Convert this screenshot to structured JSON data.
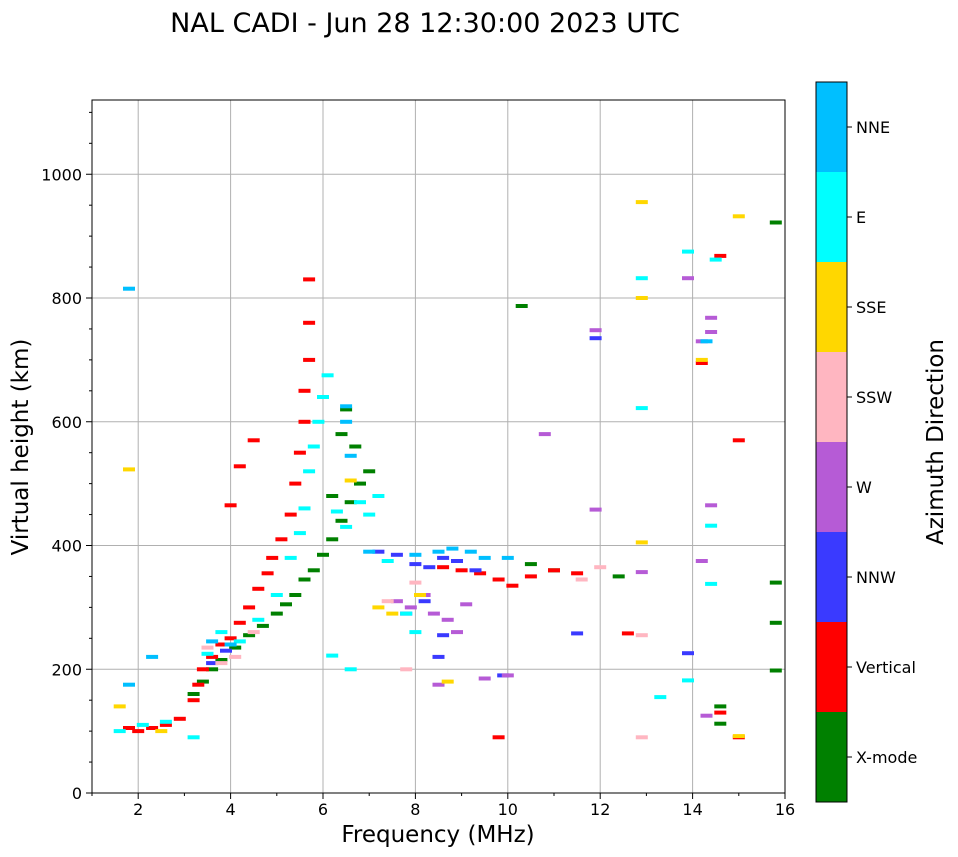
{
  "chart_data": {
    "type": "scatter",
    "title": "NAL CADI - Jun 28 12:30:00 2023 UTC",
    "xlabel": "Frequency (MHz)",
    "ylabel": "Virtual height (km)",
    "xlim": [
      1,
      16
    ],
    "ylim": [
      0,
      1120
    ],
    "xticks": [
      2,
      4,
      6,
      8,
      10,
      12,
      14,
      16
    ],
    "yticks": [
      0,
      200,
      400,
      600,
      800,
      1000
    ],
    "grid": true,
    "colorbar": {
      "label": "Azimuth Direction",
      "categories": [
        {
          "name": "X-mode",
          "color": "#008000"
        },
        {
          "name": "Vertical",
          "color": "#ff0000"
        },
        {
          "name": "NNW",
          "color": "#3a3aff"
        },
        {
          "name": "W",
          "color": "#b65bd6"
        },
        {
          "name": "SSW",
          "color": "#ffb6c1"
        },
        {
          "name": "SSE",
          "color": "#ffd700"
        },
        {
          "name": "E",
          "color": "#00ffff"
        },
        {
          "name": "NNE",
          "color": "#00bfff"
        }
      ]
    },
    "series": [
      {
        "name": "X-mode",
        "points": [
          [
            3.2,
            160
          ],
          [
            3.4,
            180
          ],
          [
            3.6,
            200
          ],
          [
            3.8,
            215
          ],
          [
            4.1,
            235
          ],
          [
            4.4,
            255
          ],
          [
            4.7,
            270
          ],
          [
            5.0,
            290
          ],
          [
            5.2,
            305
          ],
          [
            5.4,
            320
          ],
          [
            5.6,
            345
          ],
          [
            5.8,
            360
          ],
          [
            6.0,
            385
          ],
          [
            6.2,
            410
          ],
          [
            6.4,
            440
          ],
          [
            6.6,
            470
          ],
          [
            6.8,
            500
          ],
          [
            7.0,
            520
          ],
          [
            6.5,
            620
          ],
          [
            6.4,
            580
          ],
          [
            6.7,
            560
          ],
          [
            6.2,
            480
          ],
          [
            10.3,
            787
          ],
          [
            10.5,
            370
          ],
          [
            11.0,
            360
          ],
          [
            12.4,
            350
          ],
          [
            14.6,
            140
          ],
          [
            14.6,
            112
          ],
          [
            15.8,
            922
          ],
          [
            15.8,
            340
          ],
          [
            15.8,
            275
          ],
          [
            15.8,
            198
          ]
        ]
      },
      {
        "name": "Vertical",
        "points": [
          [
            1.8,
            105
          ],
          [
            2.0,
            100
          ],
          [
            2.3,
            105
          ],
          [
            2.6,
            110
          ],
          [
            2.9,
            120
          ],
          [
            3.2,
            150
          ],
          [
            3.3,
            175
          ],
          [
            3.4,
            200
          ],
          [
            3.6,
            220
          ],
          [
            3.8,
            240
          ],
          [
            4.0,
            250
          ],
          [
            4.2,
            275
          ],
          [
            4.4,
            300
          ],
          [
            4.6,
            330
          ],
          [
            4.8,
            355
          ],
          [
            4.9,
            380
          ],
          [
            5.1,
            410
          ],
          [
            5.3,
            450
          ],
          [
            5.4,
            500
          ],
          [
            5.5,
            550
          ],
          [
            5.6,
            600
          ],
          [
            5.6,
            650
          ],
          [
            5.7,
            700
          ],
          [
            5.7,
            760
          ],
          [
            5.7,
            830
          ],
          [
            4.5,
            570
          ],
          [
            4.2,
            528
          ],
          [
            4.0,
            465
          ],
          [
            8.6,
            365
          ],
          [
            9.0,
            360
          ],
          [
            9.4,
            355
          ],
          [
            9.8,
            345
          ],
          [
            10.1,
            335
          ],
          [
            10.5,
            350
          ],
          [
            11.0,
            360
          ],
          [
            11.5,
            355
          ],
          [
            12.6,
            258
          ],
          [
            14.2,
            695
          ],
          [
            14.6,
            868
          ],
          [
            15.0,
            570
          ],
          [
            15.0,
            90
          ],
          [
            14.6,
            130
          ],
          [
            9.8,
            90
          ]
        ]
      },
      {
        "name": "NNW",
        "points": [
          [
            3.6,
            210
          ],
          [
            3.9,
            230
          ],
          [
            7.2,
            390
          ],
          [
            7.6,
            385
          ],
          [
            8.0,
            370
          ],
          [
            8.3,
            365
          ],
          [
            8.6,
            380
          ],
          [
            8.9,
            375
          ],
          [
            9.3,
            360
          ],
          [
            7.8,
            290
          ],
          [
            8.2,
            310
          ],
          [
            8.6,
            255
          ],
          [
            8.5,
            220
          ],
          [
            11.5,
            258
          ],
          [
            11.9,
            735
          ],
          [
            13.9,
            226
          ],
          [
            9.9,
            190
          ]
        ]
      },
      {
        "name": "W",
        "points": [
          [
            7.6,
            310
          ],
          [
            7.9,
            300
          ],
          [
            8.2,
            320
          ],
          [
            8.4,
            290
          ],
          [
            8.7,
            280
          ],
          [
            9.1,
            305
          ],
          [
            8.9,
            260
          ],
          [
            8.5,
            175
          ],
          [
            9.5,
            185
          ],
          [
            10.0,
            190
          ],
          [
            10.8,
            580
          ],
          [
            11.9,
            748
          ],
          [
            11.9,
            458
          ],
          [
            12.9,
            357
          ],
          [
            13.9,
            832
          ],
          [
            14.2,
            375
          ],
          [
            14.4,
            465
          ],
          [
            14.4,
            745
          ],
          [
            14.4,
            768
          ],
          [
            14.3,
            125
          ],
          [
            14.2,
            730
          ]
        ]
      },
      {
        "name": "SSW",
        "points": [
          [
            3.5,
            235
          ],
          [
            3.8,
            210
          ],
          [
            4.1,
            220
          ],
          [
            4.5,
            260
          ],
          [
            7.4,
            310
          ],
          [
            7.8,
            200
          ],
          [
            8.0,
            340
          ],
          [
            11.6,
            345
          ],
          [
            12.0,
            365
          ],
          [
            12.9,
            255
          ],
          [
            12.9,
            90
          ]
        ]
      },
      {
        "name": "SSE",
        "points": [
          [
            1.6,
            140
          ],
          [
            1.8,
            523
          ],
          [
            2.5,
            100
          ],
          [
            6.6,
            505
          ],
          [
            7.2,
            300
          ],
          [
            7.5,
            290
          ],
          [
            8.1,
            320
          ],
          [
            8.7,
            180
          ],
          [
            12.9,
            955
          ],
          [
            12.9,
            800
          ],
          [
            12.9,
            405
          ],
          [
            14.2,
            700
          ],
          [
            15.0,
            932
          ],
          [
            15.0,
            92
          ]
        ]
      },
      {
        "name": "E",
        "points": [
          [
            1.6,
            100
          ],
          [
            2.1,
            110
          ],
          [
            2.6,
            115
          ],
          [
            3.2,
            90
          ],
          [
            3.5,
            225
          ],
          [
            3.8,
            260
          ],
          [
            4.2,
            245
          ],
          [
            4.6,
            280
          ],
          [
            5.0,
            320
          ],
          [
            5.3,
            380
          ],
          [
            5.5,
            420
          ],
          [
            5.6,
            460
          ],
          [
            5.7,
            520
          ],
          [
            5.8,
            560
          ],
          [
            5.9,
            600
          ],
          [
            6.0,
            640
          ],
          [
            6.1,
            675
          ],
          [
            6.3,
            455
          ],
          [
            6.5,
            430
          ],
          [
            6.8,
            470
          ],
          [
            7.0,
            450
          ],
          [
            7.2,
            480
          ],
          [
            6.6,
            200
          ],
          [
            6.2,
            222
          ],
          [
            7.4,
            375
          ],
          [
            7.8,
            290
          ],
          [
            8.0,
            260
          ],
          [
            13.9,
            875
          ],
          [
            12.9,
            832
          ],
          [
            12.9,
            622
          ],
          [
            13.3,
            155
          ],
          [
            14.4,
            338
          ],
          [
            14.4,
            432
          ],
          [
            14.5,
            862
          ],
          [
            13.9,
            182
          ]
        ]
      },
      {
        "name": "NNE",
        "points": [
          [
            1.8,
            815
          ],
          [
            1.8,
            175
          ],
          [
            2.3,
            220
          ],
          [
            3.6,
            245
          ],
          [
            4.0,
            240
          ],
          [
            6.5,
            625
          ],
          [
            6.6,
            545
          ],
          [
            6.5,
            600
          ],
          [
            7.0,
            390
          ],
          [
            8.0,
            385
          ],
          [
            8.5,
            390
          ],
          [
            8.8,
            395
          ],
          [
            9.2,
            390
          ],
          [
            10.0,
            380
          ],
          [
            9.5,
            380
          ],
          [
            14.3,
            730
          ]
        ]
      }
    ]
  }
}
